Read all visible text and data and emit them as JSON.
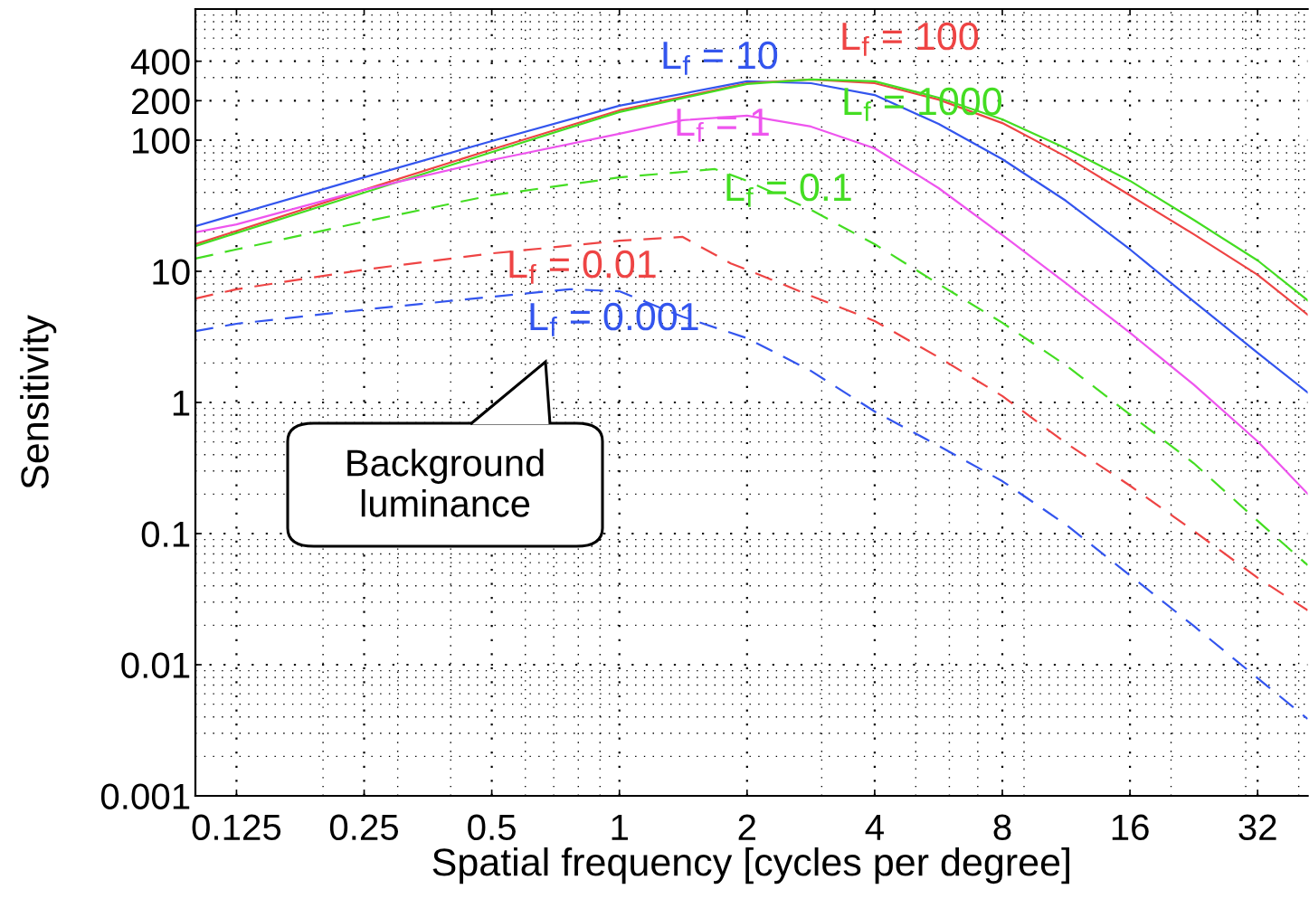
{
  "chart_data": {
    "type": "line",
    "xlabel": "Spatial frequency [cycles per degree]",
    "ylabel": "Sensitivity",
    "log": "xy",
    "grid": true,
    "xlim": [
      0.1,
      42
    ],
    "xticks": [
      0.125,
      0.25,
      0.5,
      1,
      2,
      4,
      8,
      16,
      32
    ],
    "ylim": [
      0.001,
      1000
    ],
    "yticks": [
      0.001,
      0.01,
      0.1,
      1,
      10,
      100,
      200,
      400
    ],
    "series": [
      {
        "name": "L$_{f}$ = 10",
        "color": "#3355ee",
        "line_style": "solid",
        "x": [
          0.1,
          0.25,
          0.5,
          1,
          2,
          2.83,
          4,
          5.66,
          8,
          11.3,
          16,
          22.6,
          32,
          42
        ],
        "values": [
          22.1,
          52,
          98.4,
          183,
          281,
          272,
          221,
          133,
          71.6,
          34.5,
          14.7,
          5.9,
          2.39,
          1.19
        ]
      },
      {
        "name": "L$_{f}$ = 100",
        "color": "#ee4444",
        "line_style": "solid",
        "x": [
          0.1,
          0.25,
          0.5,
          1,
          2,
          2.83,
          4,
          5.66,
          8,
          11.3,
          16,
          22.6,
          32,
          42
        ],
        "values": [
          16.1,
          41.8,
          85,
          169,
          272,
          290,
          272,
          204,
          135,
          75,
          38,
          19.2,
          9.4,
          4.67
        ]
      },
      {
        "name": "L$_{f}$ = 1000",
        "color": "#44dd22",
        "line_style": "solid",
        "x": [
          0.1,
          0.25,
          0.5,
          1,
          2,
          2.83,
          4,
          5.66,
          8,
          11.3,
          16,
          22.6,
          32,
          42
        ],
        "values": [
          15.6,
          39.8,
          81,
          164,
          268,
          290,
          281,
          211,
          144,
          86.7,
          49,
          24.7,
          12.1,
          6.0
        ]
      },
      {
        "name": "L$_{f}$ = 1",
        "color": "#ee55ee",
        "line_style": "solid",
        "x": [
          0.1,
          0.125,
          0.25,
          0.5,
          1,
          1.41,
          2,
          2.83,
          4,
          5.66,
          8,
          11.3,
          16,
          22.6,
          32,
          42
        ],
        "values": [
          19.8,
          22.8,
          41.8,
          70.5,
          112,
          142,
          154,
          127,
          86.7,
          43.1,
          18.9,
          8.13,
          3.4,
          1.37,
          0.505,
          0.201
        ]
      },
      {
        "name": "L$_{f}$ = 0.1",
        "color": "#44dd22",
        "line_style": "dashed",
        "x": [
          0.1,
          0.125,
          0.25,
          0.5,
          1,
          1.68,
          2,
          2.83,
          4,
          5.66,
          8,
          11.3,
          16,
          22.6,
          32,
          42
        ],
        "values": [
          12.5,
          14.7,
          23.9,
          38,
          52,
          60.2,
          49,
          29.4,
          16.1,
          8.0,
          4.05,
          1.92,
          0.81,
          0.345,
          0.125,
          0.0574
        ]
      },
      {
        "name": "L$_{f}$ = 0.01",
        "color": "#ee4444",
        "line_style": "dashed",
        "x": [
          0.1,
          0.125,
          0.25,
          0.5,
          1,
          1.41,
          1.83,
          2,
          2.83,
          4,
          5.66,
          8,
          11.3,
          16,
          22.6,
          32,
          42
        ],
        "values": [
          6.2,
          7.3,
          10.3,
          13.7,
          17.1,
          18.3,
          11.5,
          10.3,
          6.5,
          4.18,
          2.21,
          1.12,
          0.49,
          0.232,
          0.105,
          0.046,
          0.026
        ]
      },
      {
        "name": "L$_{f}$ = 0.001",
        "color": "#3355ee",
        "line_style": "dashed",
        "x": [
          0.1,
          0.125,
          0.25,
          0.5,
          0.763,
          1,
          1.41,
          2,
          2.83,
          4,
          5.66,
          8,
          11.3,
          16,
          22.6,
          32,
          42
        ],
        "values": [
          3.5,
          3.98,
          5.1,
          6.4,
          7.3,
          7.05,
          4.5,
          3.09,
          1.74,
          0.853,
          0.467,
          0.251,
          0.117,
          0.048,
          0.0198,
          0.0079,
          0.00386
        ]
      }
    ],
    "annotations": [
      "Background\nluminance"
    ]
  }
}
